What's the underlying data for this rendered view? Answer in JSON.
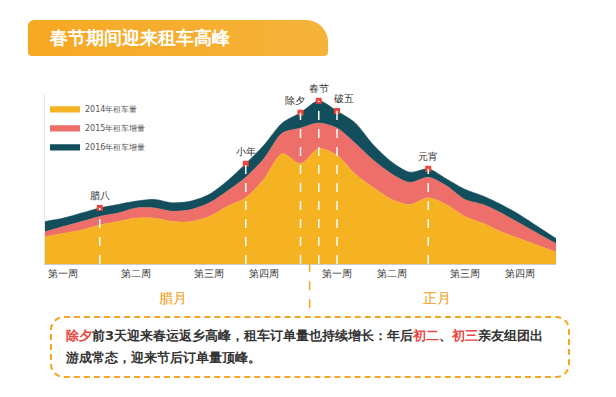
{
  "chart_data": {
    "type": "area",
    "title": "春节期间迎来租车高峰",
    "stacked": true,
    "legend": "top left",
    "grid": false,
    "tick_labels": "x",
    "categories": [
      null,
      "第一周",
      null,
      null,
      null,
      "第二周",
      null,
      null,
      null,
      "第三周",
      null,
      null,
      "第四周",
      null,
      null,
      null,
      "第一周",
      null,
      null,
      "第二周",
      null,
      null,
      null,
      "第三周",
      null,
      null,
      "第四周",
      null,
      null
    ],
    "ylim": [
      0,
      100
    ],
    "series": [
      {
        "name": "2014年租车量",
        "color": "#F5B324",
        "values": [
          16,
          18,
          20,
          23,
          25,
          27,
          27,
          25,
          25,
          28,
          34,
          39,
          50,
          65,
          59,
          68,
          64,
          53,
          45,
          38,
          35,
          39,
          35,
          28,
          24,
          19,
          15,
          11,
          7
        ]
      },
      {
        "name": "2015年租车增量",
        "color": "#EE6F6A",
        "values": [
          3,
          4,
          5,
          5,
          5,
          6,
          6,
          6,
          7,
          8,
          9,
          12,
          12,
          12,
          21,
          15,
          16,
          18,
          16,
          15,
          13,
          12,
          11,
          10,
          11,
          11,
          9,
          7,
          5
        ]
      },
      {
        "name": "2016年租车增量",
        "color": "#124E5C",
        "values": [
          6,
          5,
          5,
          5,
          5,
          4,
          5,
          5,
          5,
          5,
          6,
          8,
          8,
          6,
          9,
          13,
          10,
          12,
          9,
          7,
          6,
          5,
          4,
          6,
          5,
          5,
          5,
          4,
          3
        ]
      }
    ],
    "annotations": [
      {
        "text": "腊八",
        "category": 3
      },
      {
        "text": "小年",
        "category": 11
      },
      {
        "text": "除夕",
        "category": 14
      },
      {
        "text": "春节",
        "category": 15
      },
      {
        "text": "破五",
        "category": 16
      },
      {
        "text": "元宵",
        "category": 21
      }
    ],
    "groups": [
      {
        "label": "腊月",
        "start": 0,
        "end": 14
      },
      {
        "label": "正月",
        "start": 15,
        "end": 28
      }
    ],
    "note": [
      {
        "text": "除夕",
        "color": "#E8463F"
      },
      {
        "text": "前3天迎来春运返乡高峰，租车订单量也持续增长：年后",
        "color": "#333333"
      },
      {
        "text": "初二",
        "color": "#E8463F"
      },
      {
        "text": "、",
        "color": "#333333"
      },
      {
        "text": "初三",
        "color": "#E8463F"
      },
      {
        "text": "亲友组团出游成常态，迎来节后订单量顶峰。",
        "color": "#333333"
      }
    ]
  }
}
